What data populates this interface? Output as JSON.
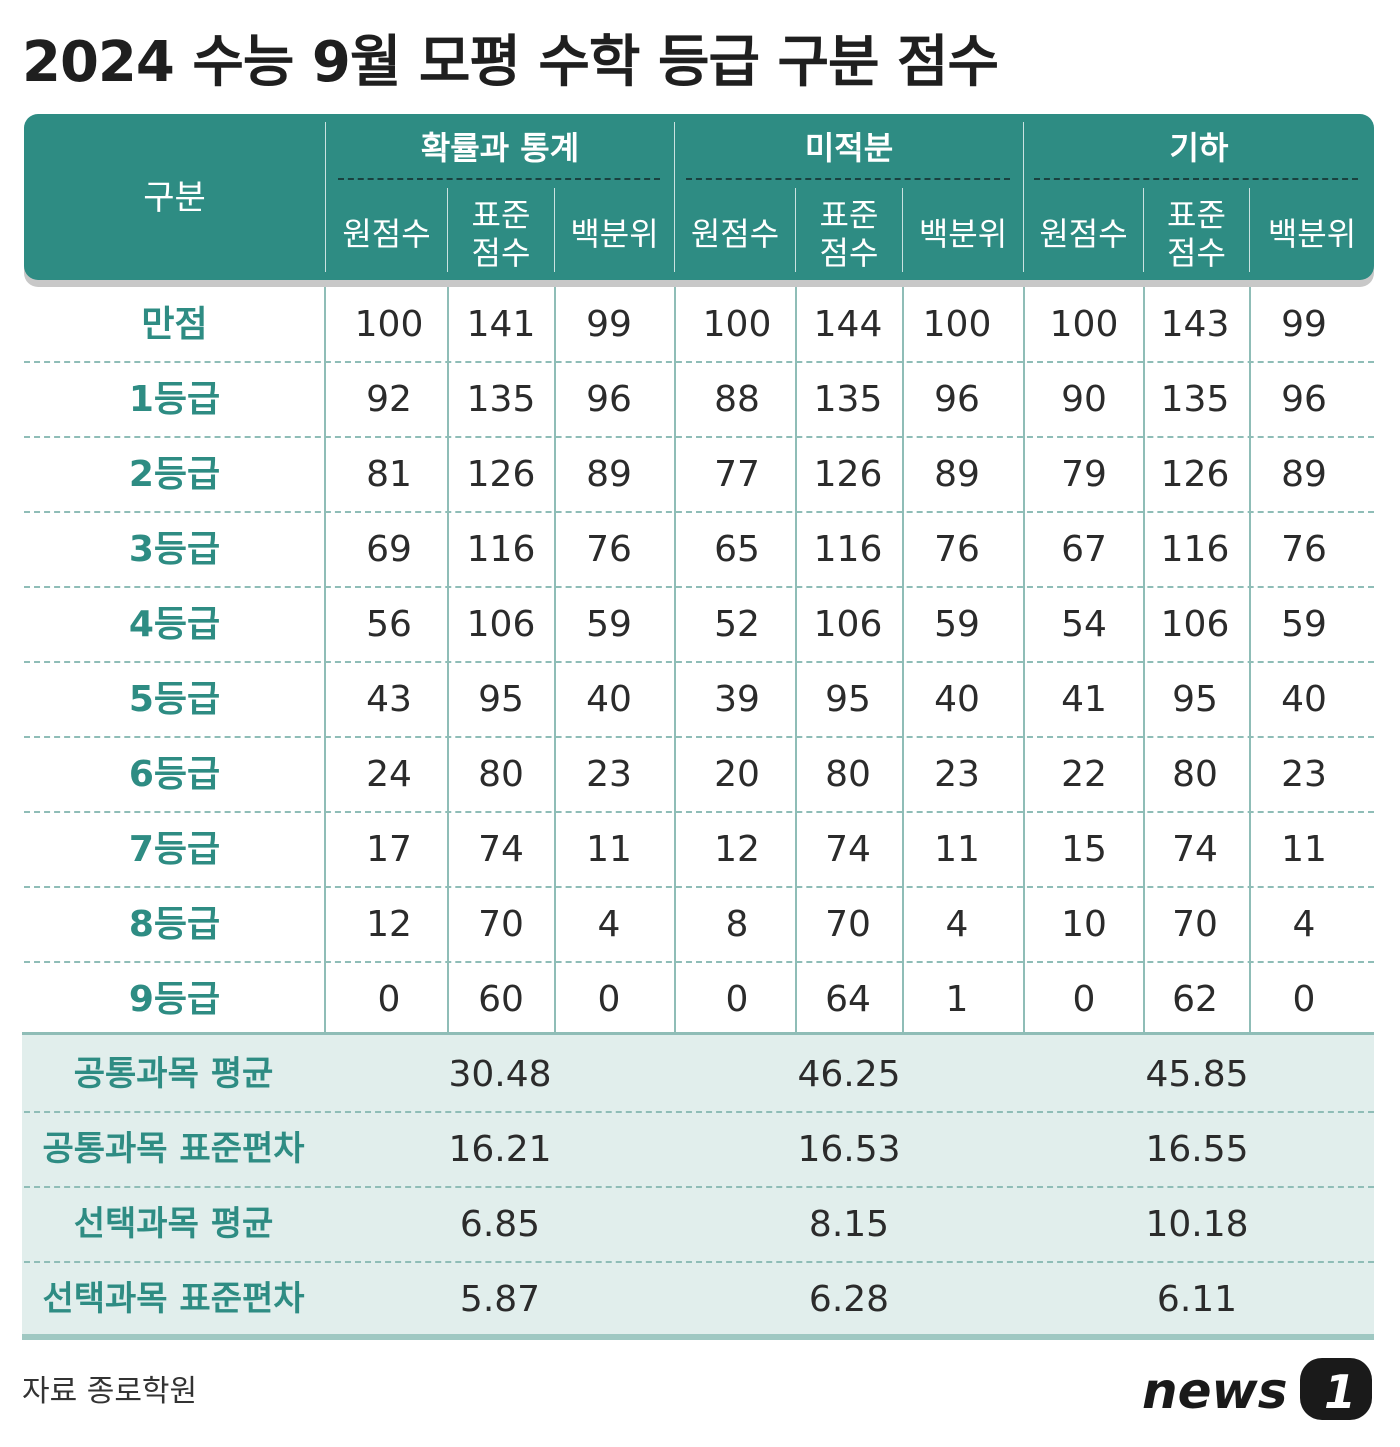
{
  "title": "2024 수능 9월 모평 수학 등급 구분 점수",
  "header": {
    "corner": "구분",
    "subjects": [
      "확률과 통계",
      "미적분",
      "기하"
    ],
    "columns": [
      {
        "line1": "원점수",
        "line2": ""
      },
      {
        "line1": "표준",
        "line2": "점수"
      },
      {
        "line1": "백분위",
        "line2": ""
      }
    ]
  },
  "rows": [
    {
      "label": "만점",
      "values": [
        "100",
        "141",
        "99",
        "100",
        "144",
        "100",
        "100",
        "143",
        "99"
      ]
    },
    {
      "label": "1등급",
      "values": [
        "92",
        "135",
        "96",
        "88",
        "135",
        "96",
        "90",
        "135",
        "96"
      ]
    },
    {
      "label": "2등급",
      "values": [
        "81",
        "126",
        "89",
        "77",
        "126",
        "89",
        "79",
        "126",
        "89"
      ]
    },
    {
      "label": "3등급",
      "values": [
        "69",
        "116",
        "76",
        "65",
        "116",
        "76",
        "67",
        "116",
        "76"
      ]
    },
    {
      "label": "4등급",
      "values": [
        "56",
        "106",
        "59",
        "52",
        "106",
        "59",
        "54",
        "106",
        "59"
      ]
    },
    {
      "label": "5등급",
      "values": [
        "43",
        "95",
        "40",
        "39",
        "95",
        "40",
        "41",
        "95",
        "40"
      ]
    },
    {
      "label": "6등급",
      "values": [
        "24",
        "80",
        "23",
        "20",
        "80",
        "23",
        "22",
        "80",
        "23"
      ]
    },
    {
      "label": "7등급",
      "values": [
        "17",
        "74",
        "11",
        "12",
        "74",
        "11",
        "15",
        "74",
        "11"
      ]
    },
    {
      "label": "8등급",
      "values": [
        "12",
        "70",
        "4",
        "8",
        "70",
        "4",
        "10",
        "70",
        "4"
      ]
    },
    {
      "label": "9등급",
      "values": [
        "0",
        "60",
        "0",
        "0",
        "64",
        "1",
        "0",
        "62",
        "0"
      ]
    }
  ],
  "stats": [
    {
      "label": "공통과목 평균",
      "values": [
        "30.48",
        "46.25",
        "45.85"
      ]
    },
    {
      "label": "공통과목 표준편차",
      "values": [
        "16.21",
        "16.53",
        "16.55"
      ]
    },
    {
      "label": "선택과목 평균",
      "values": [
        "6.85",
        "8.15",
        "10.18"
      ]
    },
    {
      "label": "선택과목 표준편차",
      "values": [
        "5.87",
        "6.28",
        "6.11"
      ]
    }
  ],
  "source": "자료 종로학원",
  "logo_text": "news",
  "logo_mark": "1",
  "colors": {
    "accent": "#2e8c83",
    "stats_bg": "#e1eeec",
    "grid": "#8fbdb7"
  }
}
